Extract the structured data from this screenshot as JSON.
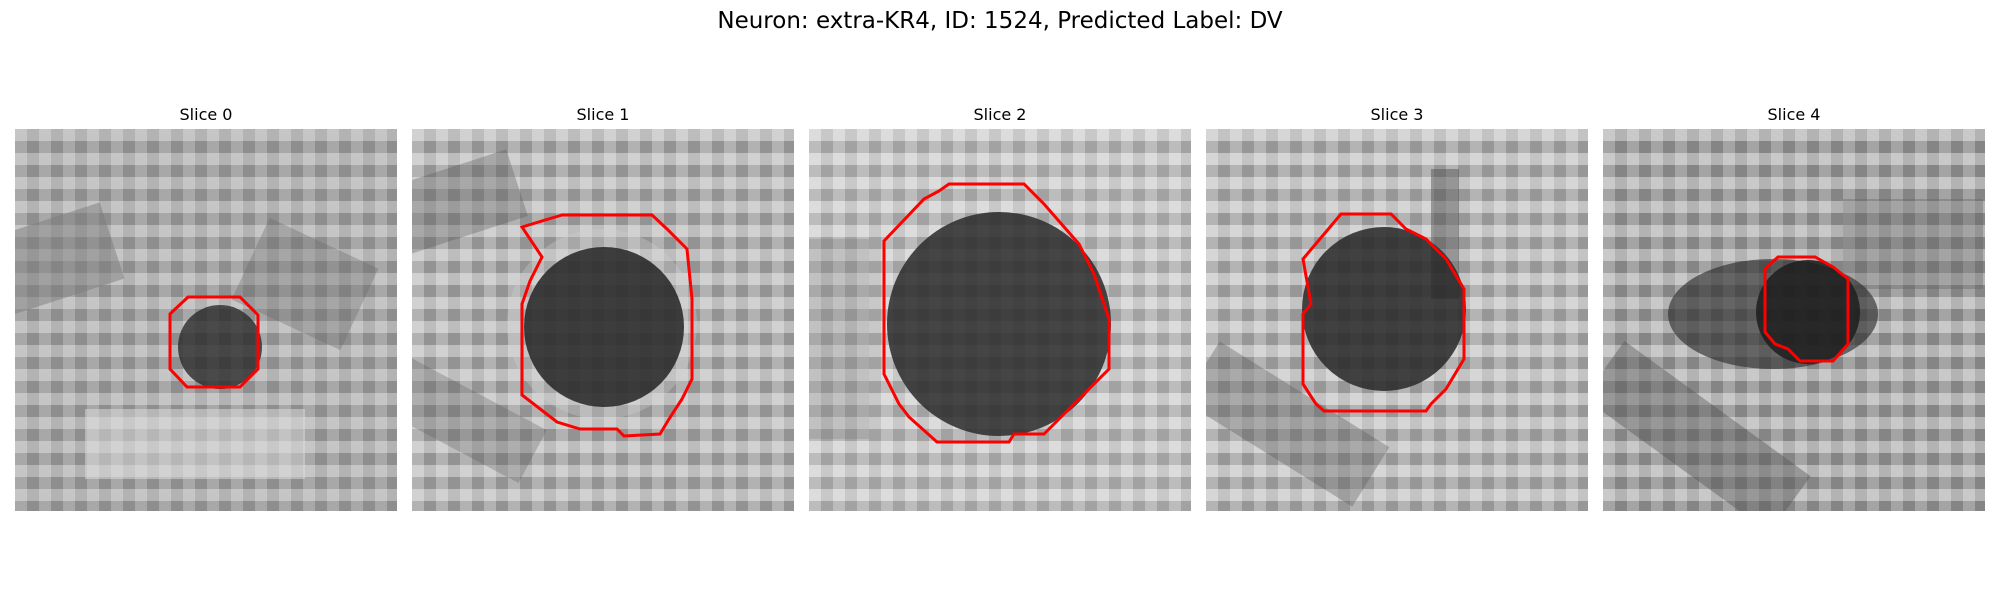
{
  "figure": {
    "title": "Neuron: extra-KR4, ID: 1524, Predicted Label: DV"
  },
  "panels": [
    {
      "title": "Slice 0"
    },
    {
      "title": "Slice 1"
    },
    {
      "title": "Slice 2"
    },
    {
      "title": "Slice 3"
    },
    {
      "title": "Slice 4"
    }
  ],
  "colors": {
    "contour": "#ff0000",
    "background": "#ffffff"
  },
  "image_style": "grayscale-pixelated-microscopy"
}
